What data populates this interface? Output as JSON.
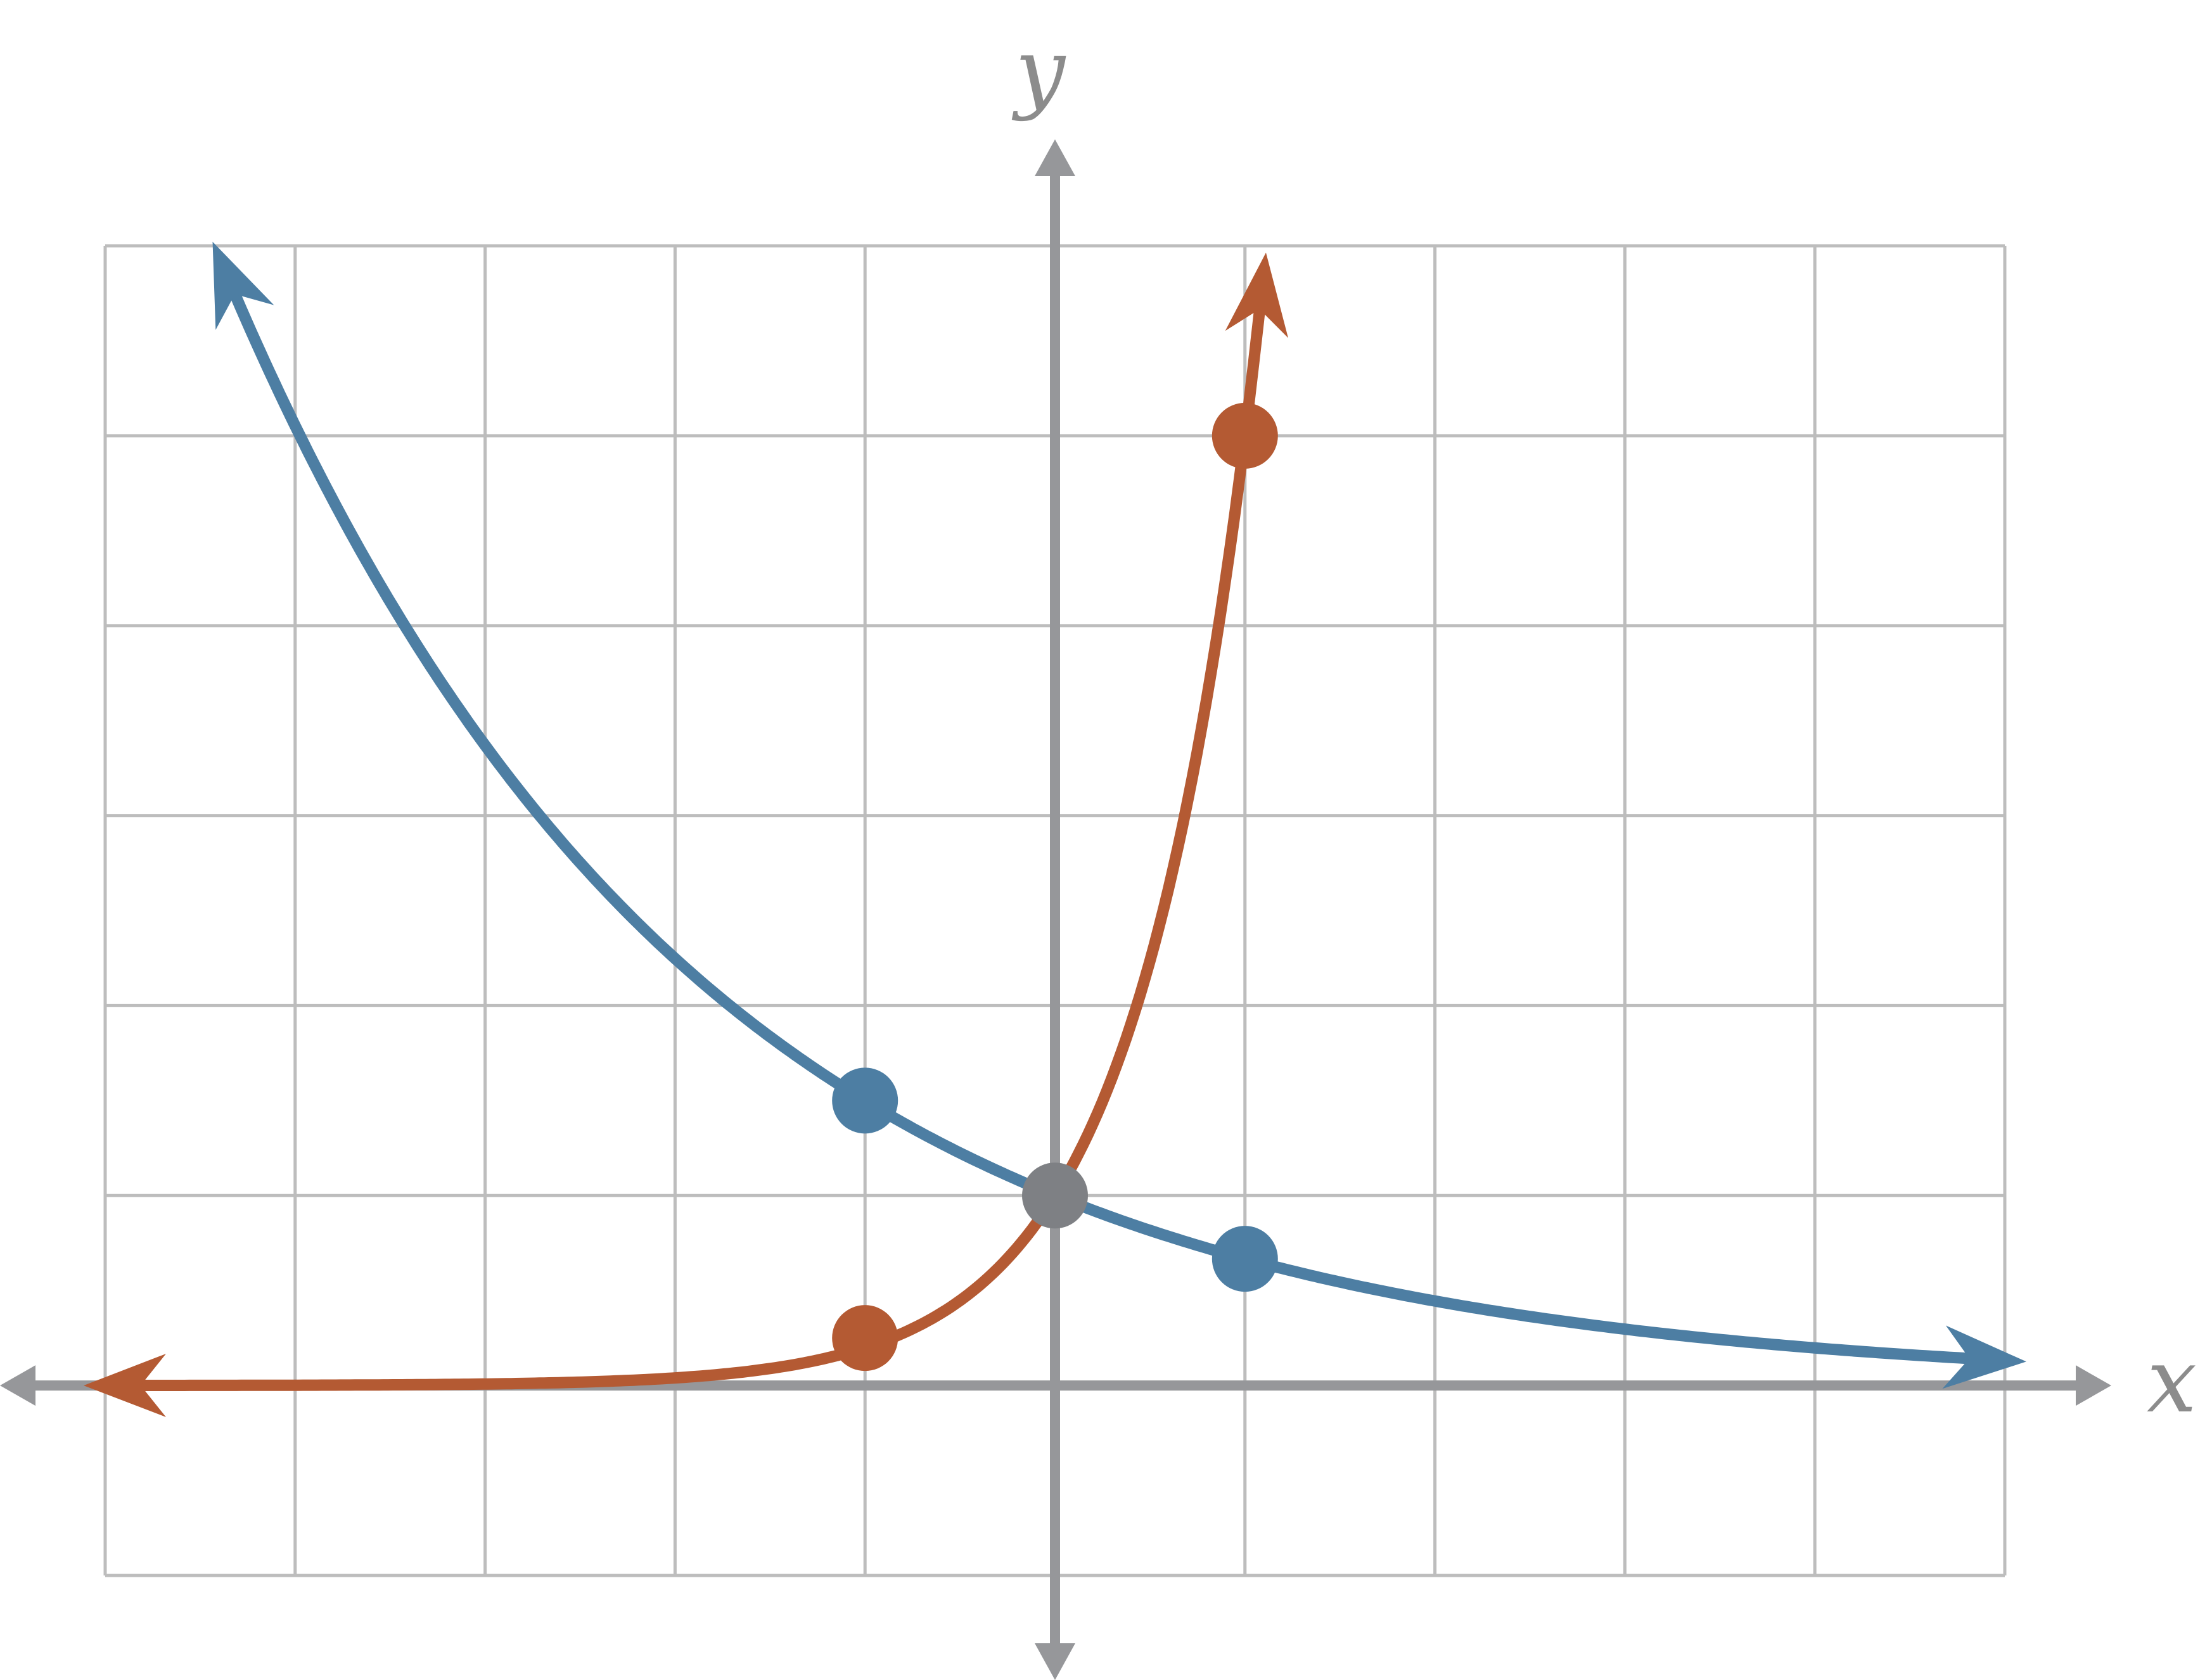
{
  "chart_data": {
    "type": "line",
    "title": "",
    "xlabel": "x",
    "ylabel": "y",
    "xlim": [
      -5,
      5
    ],
    "ylim": [
      -1,
      6
    ],
    "grid": true,
    "series": [
      {
        "color": "#4d7ea3",
        "points": [
          [
            -1,
            1.5
          ],
          [
            0,
            1
          ],
          [
            1,
            0.667
          ]
        ]
      },
      {
        "color": "#b45a33",
        "points": [
          [
            -1,
            0.25
          ],
          [
            0,
            1
          ],
          [
            1,
            5
          ]
        ]
      }
    ],
    "common_point": [
      0,
      1
    ],
    "common_point_color": "#7e8084"
  },
  "colors": {
    "grid": "#bdbdbd",
    "axis": "#96979a",
    "label": "#8c8c8c"
  }
}
